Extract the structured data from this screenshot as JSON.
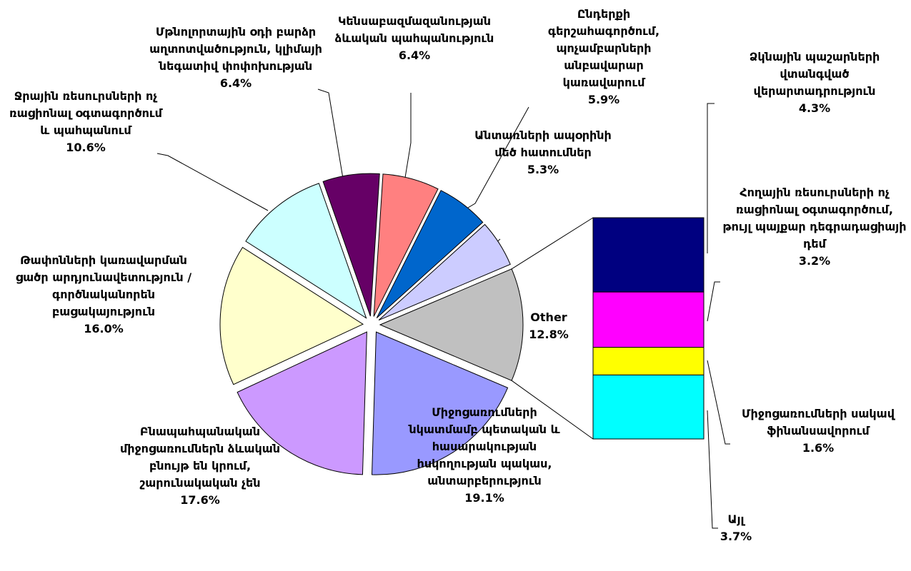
{
  "chart_data": {
    "type": "pie-of-bar",
    "categories": [
      "Other",
      "Միջոցառումների նկատմամբ պետական և հասարակության հսկողության պակաս, անտարբերություն",
      "Բնապահպանական միջոցառումներն ձևական բնույթ են կրում, շարունակական չեն",
      "Թափոնների կառավարման ցածր արդյունավետություն /գործնականորեն բացակայություն",
      "Ջրային ռեսուրսների ոչ ռացիոնալ օգտագործում և պահպանում",
      "Մթնոլորտային օդի բարձր աղտոտվածություն, կլիմայի նեգատիվ փոփոխության",
      "Կենսաբազմազանության ձևական պահպանություն",
      "Ընդերքի գերշահագործում, պոչամբարների անբավարար կառավարում",
      "Անտառների ապօրինի մեծ հատումներ"
    ],
    "values": [
      12.8,
      19.1,
      17.6,
      16.0,
      10.6,
      6.4,
      6.4,
      5.9,
      5.3
    ],
    "value_labels": [
      "12.8%",
      "19.1%",
      "17.6%",
      "16.0%",
      "10.6%",
      "6.4%",
      "6.4%",
      "5.9%",
      "5.3%"
    ],
    "colors": [
      "#c0c0c0",
      "#9999ff",
      "#cc99ff",
      "#ffffcc",
      "#ccffff",
      "#660066",
      "#ff8080",
      "#0066cc",
      "#ccccff"
    ],
    "bar": {
      "categories": [
        "Ձկնային պաշարների վտանգված վերարտադրություն",
        "Հողային ռեսուրսների ոչ ռացիոնալ օգտագործում, թույլ պայքար դեգրադացիայի դեմ",
        "Միջոցառումների սակավ ֆինանսավորում",
        "Այլ"
      ],
      "values": [
        4.3,
        3.2,
        1.6,
        3.7
      ],
      "value_labels": [
        "4.3%",
        "3.2%",
        "1.6%",
        "3.7%"
      ],
      "colors": [
        "#000080",
        "#ff00ff",
        "#ffff00",
        "#00ffff"
      ]
    }
  }
}
